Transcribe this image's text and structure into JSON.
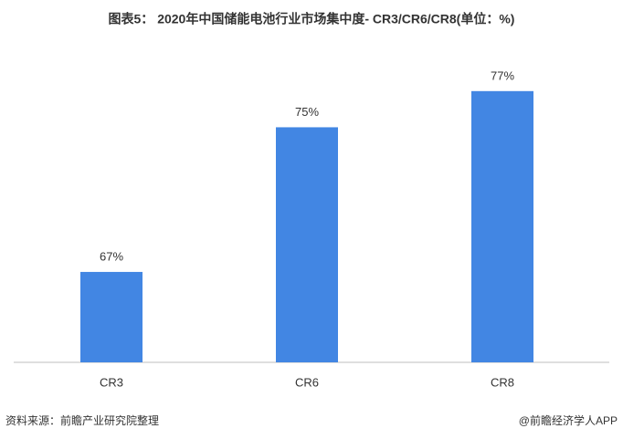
{
  "chart_data": {
    "type": "bar",
    "title": "图表5： 2020年中国储能电池行业市场集中度- CR3/CR6/CR8(单位：%)",
    "categories": [
      "CR3",
      "CR6",
      "CR8"
    ],
    "values": [
      67,
      75,
      77
    ],
    "value_labels": [
      "67%",
      "75%",
      "77%"
    ],
    "color": "#4286e3",
    "ylim": [
      62,
      78
    ],
    "source": "资料来源：前瞻产业研究院整理",
    "brand": "@前瞻经济学人APP"
  }
}
